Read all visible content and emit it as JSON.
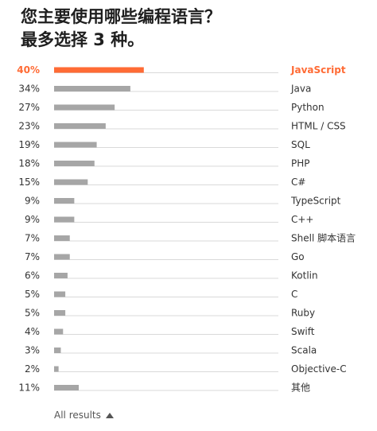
{
  "title": {
    "line1": "您主要使用哪些编程语言？",
    "line2": "最多选择 3 种。"
  },
  "chart_data": {
    "type": "bar",
    "orientation": "horizontal",
    "categories": [
      "JavaScript",
      "Java",
      "Python",
      "HTML / CSS",
      "SQL",
      "PHP",
      "C#",
      "TypeScript",
      "C++",
      "Shell 脚本语言",
      "Go",
      "Kotlin",
      "C",
      "Ruby",
      "Swift",
      "Scala",
      "Objective-C",
      "其他"
    ],
    "values": [
      40,
      34,
      27,
      23,
      19,
      18,
      15,
      9,
      9,
      7,
      7,
      6,
      5,
      5,
      4,
      3,
      2,
      11
    ],
    "value_suffix": "%",
    "highlight_index": 0,
    "xlim": [
      0,
      100
    ],
    "colors": {
      "highlight": "#ff6b35",
      "bar": "#a6a6a6",
      "track": "#d9d9d9",
      "label": "#333333"
    }
  },
  "footer": {
    "label": "All results",
    "icon": "caret-up-icon"
  }
}
